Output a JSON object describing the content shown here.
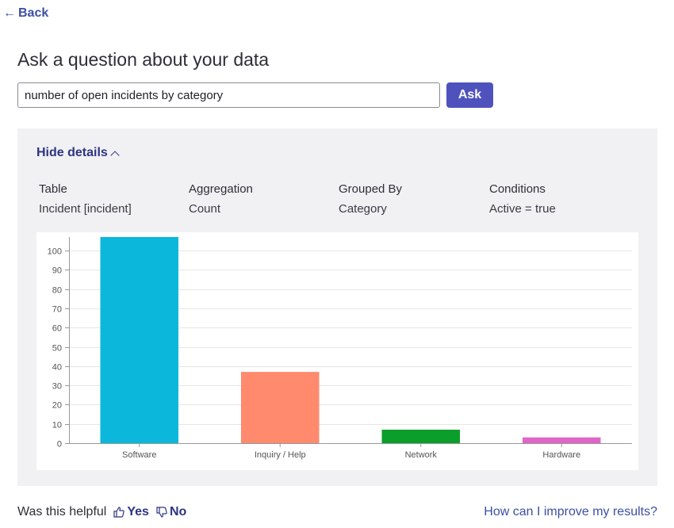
{
  "nav": {
    "back_label": "Back"
  },
  "page": {
    "title": "Ask a question about your data"
  },
  "query": {
    "value": "number of open incidents by category"
  },
  "ask_button": {
    "label": "Ask"
  },
  "details": {
    "toggle_label": "Hide details",
    "columns": [
      {
        "label": "Table",
        "value": "Incident [incident]"
      },
      {
        "label": "Aggregation",
        "value": "Count"
      },
      {
        "label": "Grouped By",
        "value": "Category"
      },
      {
        "label": "Conditions",
        "value": "Active = true"
      }
    ]
  },
  "chart_data": {
    "type": "bar",
    "categories": [
      "Software",
      "Inquiry / Help",
      "Network",
      "Hardware"
    ],
    "values": [
      107,
      37,
      7,
      3
    ],
    "colors": [
      "#0bb8dc",
      "#ff8a6d",
      "#0b9e2a",
      "#e065c8"
    ],
    "yticks": [
      0,
      10,
      20,
      30,
      40,
      50,
      60,
      70,
      80,
      90,
      100
    ],
    "ylim": [
      0,
      107
    ],
    "grid": true
  },
  "feedback": {
    "prompt": "Was this helpful",
    "yes_label": "Yes",
    "no_label": "No",
    "improve_link": "How can I improve my results?"
  },
  "colors": {
    "accent": "#4f52bd",
    "link": "#3c4fa6",
    "panel_bg": "#f1f1f4"
  }
}
